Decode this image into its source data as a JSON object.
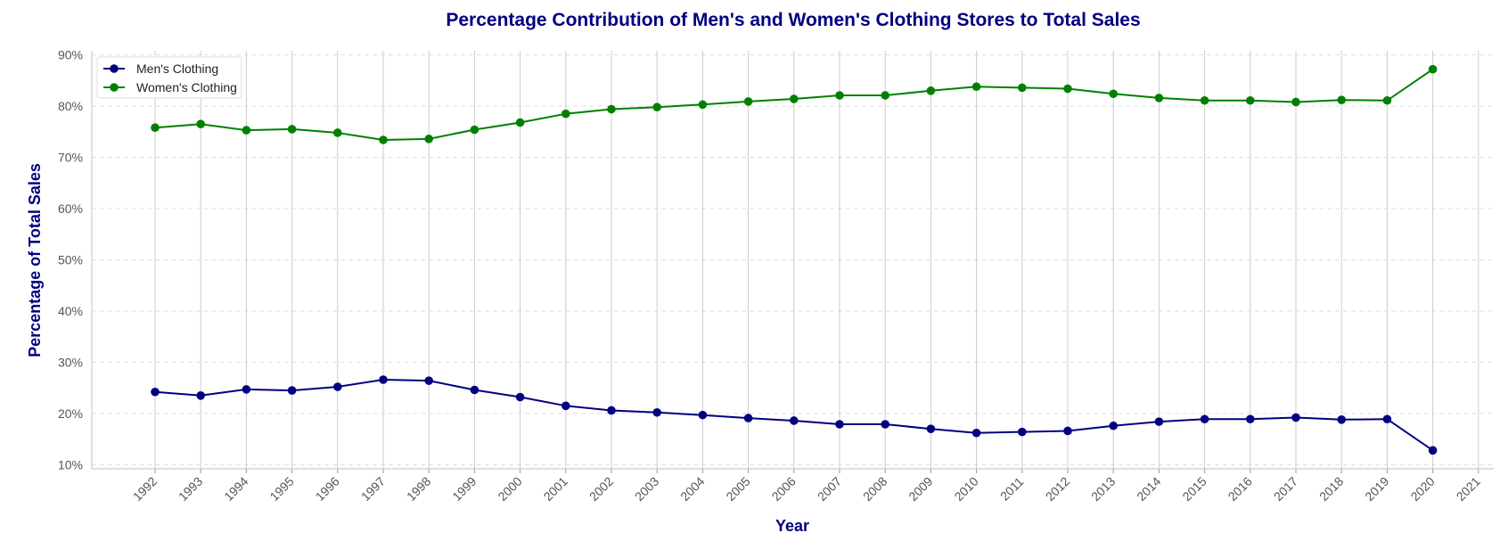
{
  "chart_data": {
    "type": "line",
    "title": "Percentage Contribution of Men's and Women's Clothing Stores to Total Sales",
    "xlabel": "Year",
    "ylabel": "Percentage of Total Sales",
    "x": [
      "1992",
      "1993",
      "1994",
      "1995",
      "1996",
      "1997",
      "1998",
      "1999",
      "2000",
      "2001",
      "2002",
      "2003",
      "2004",
      "2005",
      "2006",
      "2007",
      "2008",
      "2009",
      "2010",
      "2011",
      "2012",
      "2013",
      "2014",
      "2015",
      "2016",
      "2017",
      "2018",
      "2019",
      "2020",
      "2021"
    ],
    "ylim": [
      9.2,
      90.8
    ],
    "yticks": [
      10,
      20,
      30,
      40,
      50,
      60,
      70,
      80,
      90
    ],
    "ytick_labels": [
      "10%",
      "20%",
      "30%",
      "40%",
      "50%",
      "60%",
      "70%",
      "80%",
      "90%"
    ],
    "grid": {
      "horizontal": "dashed",
      "vertical": "solid"
    },
    "legend_position": "top-left",
    "series": [
      {
        "name": "Men's Clothing",
        "color": "#000080",
        "values": [
          24.2,
          23.5,
          24.7,
          24.5,
          25.2,
          26.6,
          26.4,
          24.6,
          23.2,
          21.5,
          20.6,
          20.2,
          19.7,
          19.1,
          18.6,
          17.9,
          17.9,
          17.0,
          16.2,
          16.4,
          16.6,
          17.6,
          18.4,
          18.9,
          18.9,
          19.2,
          18.8,
          18.9,
          12.8,
          null
        ]
      },
      {
        "name": "Women's Clothing",
        "color": "#008000",
        "values": [
          75.8,
          76.5,
          75.3,
          75.5,
          74.8,
          73.4,
          73.6,
          75.4,
          76.8,
          78.5,
          79.4,
          79.8,
          80.3,
          80.9,
          81.4,
          82.1,
          82.1,
          83.0,
          83.8,
          83.6,
          83.4,
          82.4,
          81.6,
          81.1,
          81.1,
          80.8,
          81.2,
          81.1,
          87.2,
          null
        ]
      }
    ]
  },
  "style": {
    "title_color": "#000080",
    "axis_label_color": "#000080",
    "grid_color": "#cccccc",
    "spine_color": "#cccccc"
  }
}
